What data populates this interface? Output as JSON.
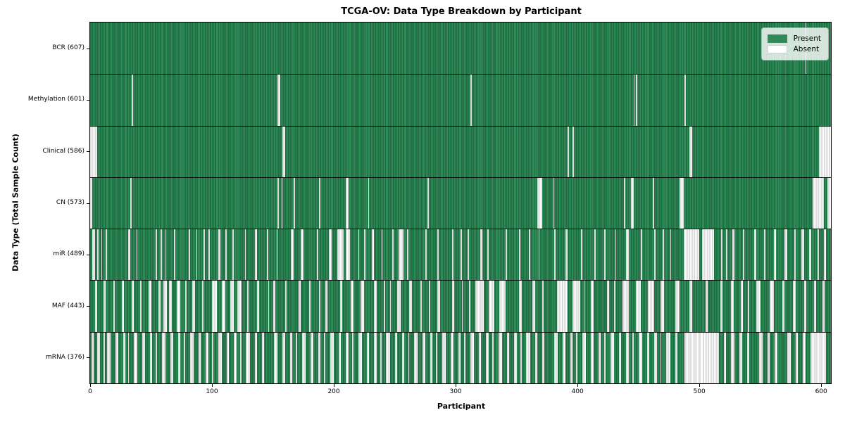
{
  "title": "TCGA-OV: Data Type Breakdown by Participant",
  "legend": {
    "items": [
      {
        "label": "Present",
        "color": "#2e8b57"
      },
      {
        "label": "Absent",
        "color": "#ffffff"
      }
    ]
  },
  "colors": {
    "present_fill": "#2e8b57",
    "present_edge": "#0c2c18",
    "absent_fill": "#ffffff",
    "absent_edge": "#7d7d7d",
    "separator": "#000000",
    "plot_border": "#000000",
    "background": "#ffffff"
  },
  "chart_data": {
    "type": "heatmap",
    "title": "TCGA-OV: Data Type Breakdown by Participant",
    "xlabel": "Participant",
    "ylabel": "Data Type (Total Sample Count)",
    "legend_entries": [
      "Present",
      "Absent"
    ],
    "legend_position": "upper right",
    "n_participants": 608,
    "xlim": [
      0,
      608
    ],
    "x_ticks": [
      0,
      100,
      200,
      300,
      400,
      500,
      600
    ],
    "rows": [
      {
        "label": "BCR (607)",
        "name": "BCR",
        "present_count": 607,
        "absent_ranges": [
          [
            587,
            587
          ]
        ]
      },
      {
        "label": "Methylation (601)",
        "name": "Methylation",
        "present_count": 601,
        "absent_ranges": [
          [
            34,
            34
          ],
          [
            154,
            155
          ],
          [
            312,
            312
          ],
          [
            446,
            446
          ],
          [
            448,
            448
          ],
          [
            488,
            488
          ]
        ]
      },
      {
        "label": "Clinical (586)",
        "name": "Clinical",
        "present_count": 586,
        "absent_ranges": [
          [
            0,
            5
          ],
          [
            158,
            159
          ],
          [
            392,
            392
          ],
          [
            396,
            396
          ],
          [
            492,
            493
          ],
          [
            598,
            607
          ]
        ]
      },
      {
        "label": "CN (573)",
        "name": "CN",
        "present_count": 573,
        "absent_ranges": [
          [
            0,
            1
          ],
          [
            33,
            33
          ],
          [
            154,
            154
          ],
          [
            157,
            157
          ],
          [
            167,
            167
          ],
          [
            188,
            188
          ],
          [
            210,
            211
          ],
          [
            228,
            228
          ],
          [
            277,
            277
          ],
          [
            367,
            370
          ],
          [
            380,
            380
          ],
          [
            438,
            438
          ],
          [
            444,
            445
          ],
          [
            462,
            462
          ],
          [
            484,
            486
          ],
          [
            593,
            601
          ],
          [
            605,
            607
          ]
        ]
      },
      {
        "label": "miR (489)",
        "name": "miR",
        "present_count": 489,
        "absent_ranges": [
          [
            2,
            3
          ],
          [
            6,
            6
          ],
          [
            9,
            9
          ],
          [
            13,
            13
          ],
          [
            31,
            32
          ],
          [
            38,
            38
          ],
          [
            54,
            54
          ],
          [
            58,
            58
          ],
          [
            61,
            61
          ],
          [
            69,
            69
          ],
          [
            81,
            81
          ],
          [
            87,
            87
          ],
          [
            93,
            93
          ],
          [
            97,
            97
          ],
          [
            105,
            106
          ],
          [
            111,
            111
          ],
          [
            117,
            117
          ],
          [
            127,
            127
          ],
          [
            135,
            136
          ],
          [
            145,
            145
          ],
          [
            153,
            153
          ],
          [
            165,
            166
          ],
          [
            173,
            174
          ],
          [
            186,
            186
          ],
          [
            196,
            197
          ],
          [
            203,
            207
          ],
          [
            210,
            212
          ],
          [
            220,
            220
          ],
          [
            225,
            225
          ],
          [
            231,
            232
          ],
          [
            239,
            239
          ],
          [
            248,
            248
          ],
          [
            253,
            256
          ],
          [
            260,
            260
          ],
          [
            275,
            275
          ],
          [
            285,
            285
          ],
          [
            297,
            297
          ],
          [
            304,
            304
          ],
          [
            310,
            310
          ],
          [
            320,
            321
          ],
          [
            326,
            326
          ],
          [
            341,
            341
          ],
          [
            352,
            352
          ],
          [
            360,
            360
          ],
          [
            368,
            368
          ],
          [
            381,
            381
          ],
          [
            390,
            391
          ],
          [
            403,
            403
          ],
          [
            414,
            414
          ],
          [
            422,
            422
          ],
          [
            431,
            431
          ],
          [
            440,
            441
          ],
          [
            452,
            452
          ],
          [
            463,
            463
          ],
          [
            470,
            470
          ],
          [
            476,
            476
          ],
          [
            487,
            499
          ],
          [
            502,
            511
          ],
          [
            518,
            518
          ],
          [
            522,
            522
          ],
          [
            527,
            528
          ],
          [
            536,
            536
          ],
          [
            545,
            546
          ],
          [
            553,
            553
          ],
          [
            561,
            562
          ],
          [
            570,
            571
          ],
          [
            578,
            578
          ],
          [
            584,
            585
          ],
          [
            590,
            591
          ],
          [
            597,
            597
          ],
          [
            602,
            603
          ]
        ]
      },
      {
        "label": "MAF (443)",
        "name": "MAF",
        "present_count": 443,
        "absent_ranges": [
          [
            4,
            5
          ],
          [
            11,
            12
          ],
          [
            19,
            19
          ],
          [
            26,
            27
          ],
          [
            34,
            35
          ],
          [
            41,
            41
          ],
          [
            48,
            49
          ],
          [
            56,
            57
          ],
          [
            60,
            62
          ],
          [
            65,
            66
          ],
          [
            71,
            73
          ],
          [
            78,
            78
          ],
          [
            84,
            85
          ],
          [
            92,
            92
          ],
          [
            100,
            103
          ],
          [
            108,
            110
          ],
          [
            115,
            117
          ],
          [
            121,
            123
          ],
          [
            129,
            129
          ],
          [
            137,
            138
          ],
          [
            146,
            146
          ],
          [
            150,
            151
          ],
          [
            160,
            160
          ],
          [
            171,
            172
          ],
          [
            180,
            180
          ],
          [
            188,
            188
          ],
          [
            193,
            194
          ],
          [
            205,
            206
          ],
          [
            214,
            215
          ],
          [
            222,
            224
          ],
          [
            233,
            234
          ],
          [
            241,
            241
          ],
          [
            246,
            246
          ],
          [
            252,
            254
          ],
          [
            262,
            263
          ],
          [
            271,
            271
          ],
          [
            278,
            278
          ],
          [
            285,
            286
          ],
          [
            297,
            298
          ],
          [
            305,
            305
          ],
          [
            311,
            311
          ],
          [
            316,
            322
          ],
          [
            327,
            331
          ],
          [
            336,
            340
          ],
          [
            352,
            353
          ],
          [
            363,
            364
          ],
          [
            371,
            371
          ],
          [
            383,
            391
          ],
          [
            396,
            401
          ],
          [
            405,
            405
          ],
          [
            411,
            412
          ],
          [
            424,
            425
          ],
          [
            430,
            430
          ],
          [
            437,
            441
          ],
          [
            448,
            451
          ],
          [
            458,
            462
          ],
          [
            468,
            470
          ],
          [
            480,
            483
          ],
          [
            492,
            493
          ],
          [
            505,
            506
          ],
          [
            517,
            518
          ],
          [
            526,
            527
          ],
          [
            534,
            535
          ],
          [
            540,
            540
          ],
          [
            547,
            549
          ],
          [
            558,
            560
          ],
          [
            568,
            569
          ],
          [
            577,
            578
          ],
          [
            586,
            587
          ],
          [
            594,
            595
          ],
          [
            601,
            602
          ]
        ]
      },
      {
        "label": "mRNA (376)",
        "name": "mRNA",
        "present_count": 376,
        "absent_ranges": [
          [
            1,
            2
          ],
          [
            6,
            7
          ],
          [
            11,
            11
          ],
          [
            14,
            16
          ],
          [
            21,
            22
          ],
          [
            27,
            28
          ],
          [
            31,
            31
          ],
          [
            36,
            38
          ],
          [
            43,
            44
          ],
          [
            49,
            50
          ],
          [
            54,
            54
          ],
          [
            59,
            61
          ],
          [
            66,
            67
          ],
          [
            72,
            73
          ],
          [
            77,
            77
          ],
          [
            82,
            84
          ],
          [
            89,
            90
          ],
          [
            95,
            96
          ],
          [
            100,
            100
          ],
          [
            105,
            107
          ],
          [
            112,
            113
          ],
          [
            118,
            119
          ],
          [
            123,
            123
          ],
          [
            128,
            130
          ],
          [
            135,
            136
          ],
          [
            141,
            142
          ],
          [
            151,
            153
          ],
          [
            158,
            159
          ],
          [
            164,
            165
          ],
          [
            169,
            169
          ],
          [
            174,
            176
          ],
          [
            181,
            182
          ],
          [
            187,
            188
          ],
          [
            192,
            192
          ],
          [
            197,
            199
          ],
          [
            204,
            205
          ],
          [
            210,
            211
          ],
          [
            215,
            215
          ],
          [
            220,
            222
          ],
          [
            227,
            228
          ],
          [
            233,
            234
          ],
          [
            238,
            238
          ],
          [
            243,
            245
          ],
          [
            250,
            251
          ],
          [
            256,
            257
          ],
          [
            261,
            261
          ],
          [
            266,
            268
          ],
          [
            273,
            274
          ],
          [
            279,
            280
          ],
          [
            284,
            284
          ],
          [
            289,
            291
          ],
          [
            296,
            297
          ],
          [
            302,
            303
          ],
          [
            307,
            307
          ],
          [
            312,
            314
          ],
          [
            319,
            320
          ],
          [
            325,
            326
          ],
          [
            330,
            330
          ],
          [
            335,
            337
          ],
          [
            342,
            343
          ],
          [
            348,
            349
          ],
          [
            353,
            353
          ],
          [
            358,
            360
          ],
          [
            365,
            366
          ],
          [
            371,
            372
          ],
          [
            381,
            383
          ],
          [
            388,
            389
          ],
          [
            394,
            395
          ],
          [
            399,
            399
          ],
          [
            404,
            406
          ],
          [
            411,
            412
          ],
          [
            417,
            418
          ],
          [
            422,
            422
          ],
          [
            427,
            429
          ],
          [
            434,
            435
          ],
          [
            440,
            441
          ],
          [
            445,
            445
          ],
          [
            450,
            452
          ],
          [
            457,
            458
          ],
          [
            463,
            464
          ],
          [
            468,
            468
          ],
          [
            473,
            475
          ],
          [
            480,
            481
          ],
          [
            488,
            515
          ],
          [
            520,
            521
          ],
          [
            526,
            528
          ],
          [
            533,
            534
          ],
          [
            539,
            540
          ],
          [
            549,
            551
          ],
          [
            556,
            557
          ],
          [
            562,
            563
          ],
          [
            572,
            574
          ],
          [
            579,
            580
          ],
          [
            585,
            586
          ],
          [
            591,
            603
          ]
        ]
      }
    ]
  }
}
